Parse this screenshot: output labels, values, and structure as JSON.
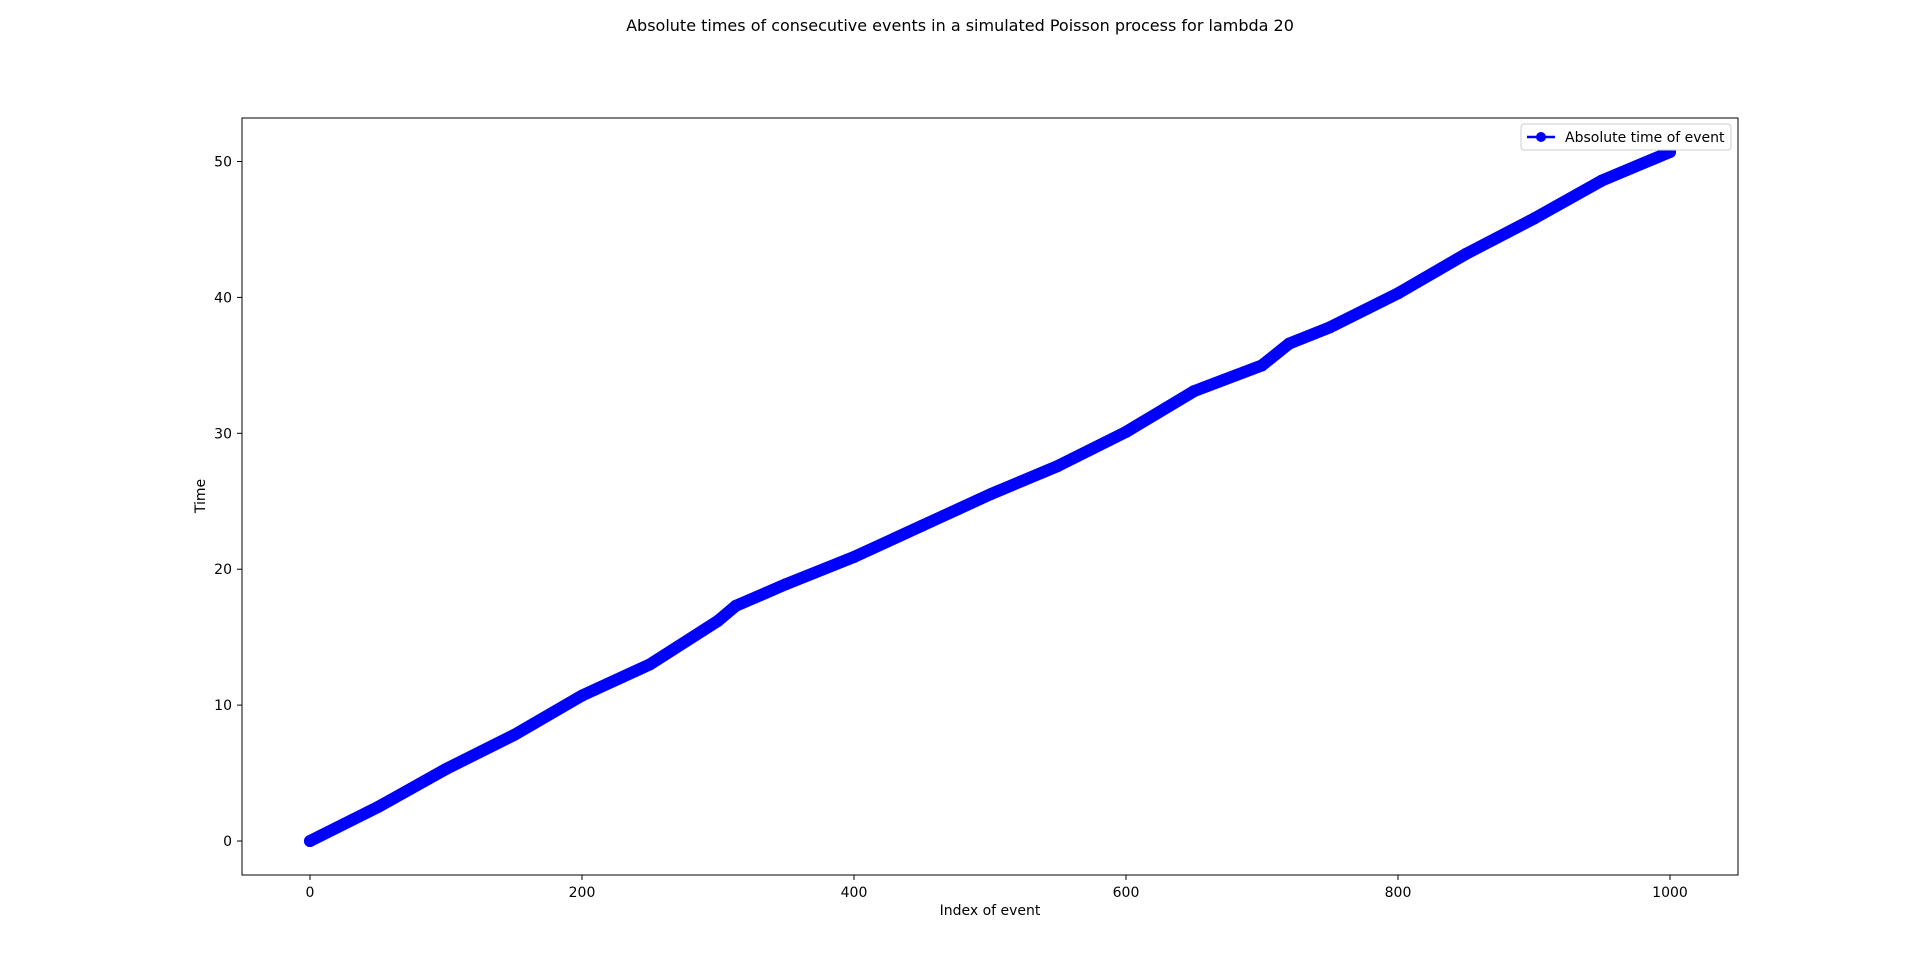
{
  "chart_data": {
    "type": "line",
    "title": "Absolute times of consecutive events in a simulated Poisson process for lambda 20",
    "xlabel": "Index of event",
    "ylabel": "Time",
    "xlim": [
      -50,
      1050
    ],
    "ylim": [
      -2.5,
      53.2
    ],
    "xticks": [
      0,
      200,
      400,
      600,
      800,
      1000
    ],
    "yticks": [
      0,
      10,
      20,
      30,
      40,
      50
    ],
    "xtick_labels": [
      "0",
      "200",
      "400",
      "600",
      "800",
      "1000"
    ],
    "ytick_labels": [
      "0",
      "10",
      "20",
      "30",
      "40",
      "50"
    ],
    "grid": false,
    "legend": {
      "position": "top-right"
    },
    "series": [
      {
        "name": "Absolute time of event",
        "color": "#0000ff",
        "marker": "circle",
        "x": [
          0,
          50,
          100,
          150,
          200,
          250,
          300,
          313,
          350,
          400,
          450,
          500,
          550,
          600,
          650,
          700,
          720,
          750,
          800,
          850,
          900,
          950,
          1000
        ],
        "y": [
          0.0,
          2.5,
          5.3,
          7.8,
          10.7,
          13.0,
          16.2,
          17.3,
          18.9,
          20.9,
          23.2,
          25.5,
          27.6,
          30.1,
          33.1,
          35.0,
          36.6,
          37.8,
          40.3,
          43.2,
          45.8,
          48.6,
          50.7
        ]
      }
    ]
  }
}
